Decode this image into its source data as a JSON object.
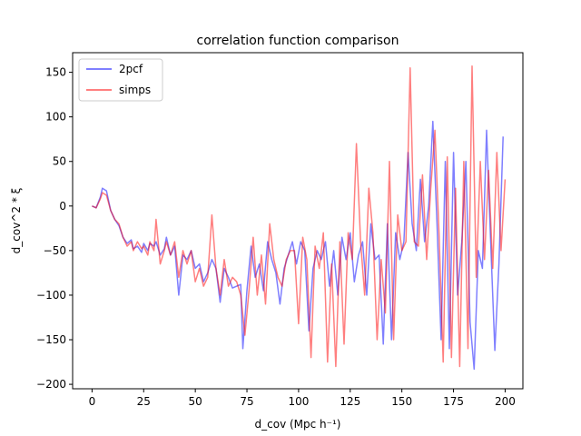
{
  "chart_data": {
    "type": "line",
    "title": "correlation function comparison",
    "xlabel": "d_cov (Mpc h⁻¹)",
    "ylabel": "d_cov^2 * ξ",
    "xlim": [
      -9.4,
      208.6
    ],
    "ylim": [
      -205,
      172
    ],
    "xticks": [
      0,
      25,
      50,
      75,
      100,
      125,
      150,
      175,
      200
    ],
    "yticks": [
      -200,
      -150,
      -100,
      -50,
      0,
      50,
      100,
      150
    ],
    "grid": false,
    "legend": "top-left",
    "series": [
      {
        "name": "2pcf",
        "color": "#0000ff",
        "opacity": 0.5,
        "x": [
          0,
          2,
          4,
          5,
          7,
          9,
          11,
          13,
          15,
          17,
          19,
          20,
          22,
          24,
          25,
          27,
          28,
          30,
          31,
          33,
          35,
          36,
          38,
          40,
          42,
          44,
          46,
          48,
          50,
          52,
          54,
          56,
          58,
          60,
          62,
          64,
          66,
          68,
          70,
          72,
          73,
          75,
          77,
          79,
          81,
          83,
          85,
          87,
          89,
          91,
          93,
          95,
          97,
          99,
          101,
          103,
          105,
          107,
          109,
          111,
          113,
          115,
          117,
          119,
          121,
          123,
          125,
          127,
          129,
          131,
          133,
          135,
          137,
          139,
          141,
          143,
          145,
          147,
          149,
          151,
          153,
          155,
          157,
          159,
          161,
          163,
          165,
          167,
          169,
          171,
          173,
          175,
          177,
          179,
          181,
          183,
          185,
          187,
          189,
          191,
          193,
          195,
          197,
          199
        ],
        "y": [
          0,
          -2,
          10,
          20,
          17,
          -5,
          -15,
          -22,
          -35,
          -42,
          -38,
          -48,
          -45,
          -52,
          -42,
          -50,
          -42,
          -45,
          -40,
          -55,
          -48,
          -35,
          -55,
          -45,
          -100,
          -55,
          -60,
          -50,
          -70,
          -65,
          -85,
          -75,
          -60,
          -70,
          -108,
          -70,
          -80,
          -92,
          -90,
          -88,
          -160,
          -95,
          -45,
          -80,
          -65,
          -95,
          -40,
          -60,
          -75,
          -110,
          -70,
          -55,
          -40,
          -65,
          -40,
          -50,
          -140,
          -70,
          -50,
          -60,
          -40,
          -90,
          -50,
          -100,
          -35,
          -60,
          -30,
          -85,
          -55,
          -40,
          -100,
          -20,
          -60,
          -55,
          -155,
          -20,
          -150,
          -30,
          -60,
          -40,
          60,
          -20,
          -50,
          30,
          -40,
          0,
          95,
          -20,
          -150,
          50,
          -160,
          60,
          -100,
          -40,
          50,
          -130,
          -183,
          -50,
          -70,
          85,
          -40,
          -162,
          -65,
          78
        ]
      },
      {
        "name": "simps",
        "color": "#ff0000",
        "opacity": 0.5,
        "x": [
          0,
          2,
          4,
          5,
          7,
          9,
          11,
          13,
          15,
          17,
          19,
          20,
          22,
          24,
          25,
          27,
          28,
          30,
          31,
          33,
          35,
          36,
          38,
          40,
          42,
          44,
          46,
          48,
          50,
          52,
          54,
          56,
          58,
          60,
          62,
          64,
          66,
          68,
          70,
          72,
          74,
          76,
          78,
          80,
          82,
          84,
          86,
          88,
          90,
          92,
          94,
          96,
          98,
          100,
          102,
          104,
          106,
          108,
          110,
          112,
          114,
          116,
          118,
          120,
          122,
          124,
          126,
          128,
          130,
          132,
          134,
          136,
          138,
          140,
          142,
          144,
          146,
          148,
          150,
          152,
          154,
          156,
          158,
          160,
          162,
          164,
          166,
          168,
          170,
          172,
          174,
          176,
          178,
          180,
          182,
          184,
          186,
          188,
          190,
          192,
          194,
          196,
          198,
          200
        ],
        "y": [
          0,
          -2,
          8,
          15,
          12,
          -5,
          -15,
          -20,
          -35,
          -45,
          -40,
          -50,
          -40,
          -48,
          -45,
          -55,
          -40,
          -50,
          -15,
          -65,
          -50,
          -40,
          -55,
          -40,
          -80,
          -50,
          -65,
          -50,
          -85,
          -70,
          -90,
          -80,
          -10,
          -70,
          -100,
          -60,
          -90,
          -80,
          -85,
          -100,
          -145,
          -95,
          -35,
          -100,
          -55,
          -110,
          -20,
          -60,
          -80,
          -90,
          -60,
          -50,
          -50,
          -132,
          -35,
          -60,
          -170,
          -45,
          -70,
          -30,
          -175,
          -65,
          -180,
          -40,
          -155,
          -30,
          -60,
          70,
          -40,
          -100,
          20,
          -30,
          -150,
          -60,
          -120,
          50,
          -150,
          -10,
          -50,
          -40,
          155,
          -40,
          -45,
          35,
          -60,
          20,
          85,
          -30,
          -175,
          55,
          -170,
          20,
          -180,
          50,
          -160,
          157,
          -80,
          50,
          -60,
          40,
          -70,
          60,
          -50,
          30
        ]
      }
    ]
  }
}
